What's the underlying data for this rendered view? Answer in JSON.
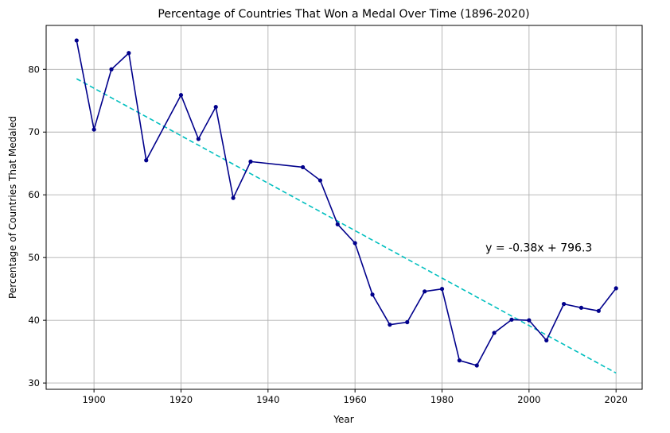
{
  "chart_data": {
    "type": "line",
    "title": "Percentage of Countries That Won a Medal Over Time (1896-2020)",
    "xlabel": "Year",
    "ylabel": "Percentage of Countries That Medaled",
    "xlim": [
      1889,
      2026
    ],
    "ylim": [
      29,
      87
    ],
    "xticks": [
      1900,
      1920,
      1940,
      1960,
      1980,
      2000,
      2020
    ],
    "yticks": [
      30,
      40,
      50,
      60,
      70,
      80
    ],
    "grid": true,
    "colors": {
      "series": "#00008b",
      "trend": "#00bfbf"
    },
    "series": [
      {
        "x": [
          1896,
          1900,
          1904,
          1908,
          1912,
          1920,
          1924,
          1928,
          1932,
          1936,
          1948,
          1952,
          1956,
          1960,
          1964,
          1968,
          1972,
          1976,
          1980,
          1984,
          1988,
          1992,
          1996,
          2000,
          2004,
          2008,
          2012,
          2016,
          2020
        ],
        "values": [
          84.6,
          70.4,
          80.0,
          82.6,
          65.5,
          75.9,
          68.9,
          74.0,
          59.5,
          65.3,
          64.4,
          62.3,
          55.3,
          52.3,
          44.1,
          39.3,
          39.7,
          44.6,
          45.0,
          33.6,
          32.8,
          38.0,
          40.1,
          40.0,
          36.8,
          42.6,
          42.0,
          41.5,
          45.1
        ]
      }
    ],
    "trendline": {
      "style": "dashed",
      "x": [
        1896,
        2020
      ],
      "values": [
        78.5,
        31.6
      ]
    },
    "annotation": {
      "text": "y = -0.38x + 796.3",
      "x": 1990,
      "y": 51
    }
  }
}
